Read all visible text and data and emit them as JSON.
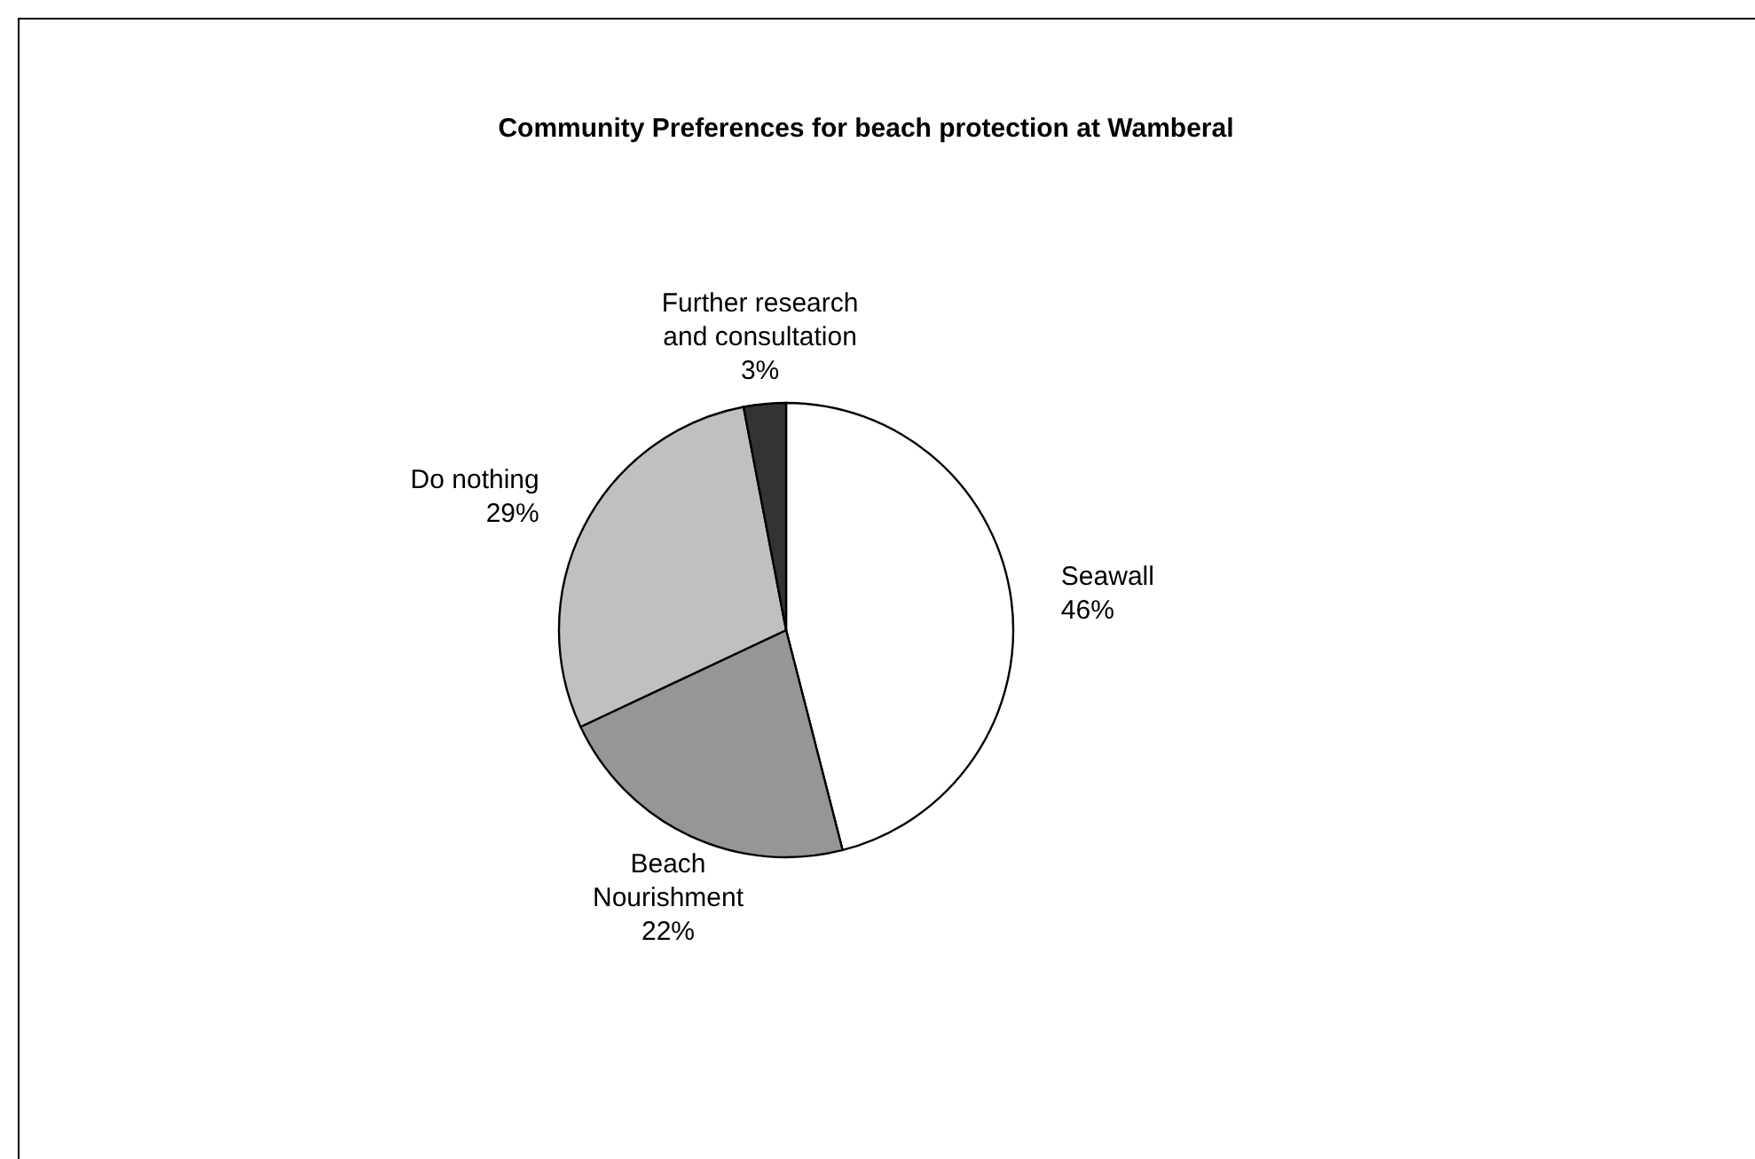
{
  "chart_data": {
    "type": "pie",
    "title": "Community Preferences for beach protection at Wamberal",
    "categories": [
      "Seawall",
      "Beach Nourishment",
      "Do nothing",
      "Further research and consultation"
    ],
    "values": [
      46,
      22,
      29,
      3
    ],
    "colors": [
      "#ffffff",
      "#969696",
      "#c0c0c0",
      "#333333"
    ],
    "value_labels": [
      "46%",
      "22%",
      "29%",
      "3%"
    ]
  }
}
